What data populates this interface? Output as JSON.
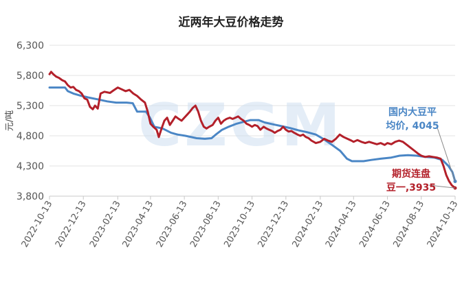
{
  "chart_data": {
    "type": "line",
    "title": "近两年大豆价格走势",
    "ylabel": "元/吨",
    "xlabel": "",
    "ylim": [
      3800,
      6300
    ],
    "yticks": [
      3800,
      4300,
      4800,
      5300,
      5800,
      6300
    ],
    "ytick_labels": [
      "3,800",
      "4,300",
      "4,800",
      "5,300",
      "5,800",
      "6,300"
    ],
    "xticks": [
      "2022-10-13",
      "2022-12-13",
      "2023-02-13",
      "2023-04-13",
      "2023-06-13",
      "2023-08-13",
      "2023-10-13",
      "2023-12-13",
      "2024-02-13",
      "2024-04-13",
      "2024-06-13",
      "2024-08-13",
      "2024-10-13"
    ],
    "xlim": [
      "2022-10-13",
      "2024-10-13"
    ],
    "grid": "horizontal",
    "watermark": "CZGM",
    "series": [
      {
        "name": "国内大豆平均价",
        "color": "#4a86c5",
        "points": [
          [
            "2022-10-13",
            5600
          ],
          [
            "2022-11-10",
            5600
          ],
          [
            "2022-11-15",
            5540
          ],
          [
            "2022-11-25",
            5500
          ],
          [
            "2022-12-10",
            5460
          ],
          [
            "2022-12-25",
            5430
          ],
          [
            "2023-01-10",
            5400
          ],
          [
            "2023-01-25",
            5370
          ],
          [
            "2023-02-10",
            5350
          ],
          [
            "2023-03-01",
            5350
          ],
          [
            "2023-03-12",
            5340
          ],
          [
            "2023-03-20",
            5200
          ],
          [
            "2023-04-05",
            5200
          ],
          [
            "2023-04-12",
            5100
          ],
          [
            "2023-04-20",
            4950
          ],
          [
            "2023-05-05",
            4920
          ],
          [
            "2023-05-20",
            4850
          ],
          [
            "2023-06-01",
            4820
          ],
          [
            "2023-06-15",
            4800
          ],
          [
            "2023-07-05",
            4760
          ],
          [
            "2023-07-20",
            4750
          ],
          [
            "2023-08-01",
            4760
          ],
          [
            "2023-08-10",
            4830
          ],
          [
            "2023-08-20",
            4900
          ],
          [
            "2023-09-01",
            4950
          ],
          [
            "2023-09-15",
            5000
          ],
          [
            "2023-10-01",
            5040
          ],
          [
            "2023-10-10",
            5060
          ],
          [
            "2023-10-25",
            5060
          ],
          [
            "2023-11-05",
            5020
          ],
          [
            "2023-11-20",
            4990
          ],
          [
            "2023-12-05",
            4960
          ],
          [
            "2023-12-20",
            4930
          ],
          [
            "2024-01-05",
            4890
          ],
          [
            "2024-01-20",
            4860
          ],
          [
            "2024-02-05",
            4820
          ],
          [
            "2024-02-20",
            4740
          ],
          [
            "2024-03-05",
            4650
          ],
          [
            "2024-03-20",
            4550
          ],
          [
            "2024-04-01",
            4420
          ],
          [
            "2024-04-10",
            4380
          ],
          [
            "2024-05-01",
            4380
          ],
          [
            "2024-05-15",
            4400
          ],
          [
            "2024-06-01",
            4420
          ],
          [
            "2024-06-20",
            4440
          ],
          [
            "2024-07-05",
            4470
          ],
          [
            "2024-07-20",
            4480
          ],
          [
            "2024-08-05",
            4470
          ],
          [
            "2024-08-20",
            4450
          ],
          [
            "2024-09-05",
            4440
          ],
          [
            "2024-09-20",
            4400
          ],
          [
            "2024-10-01",
            4300
          ],
          [
            "2024-10-08",
            4200
          ],
          [
            "2024-10-13",
            4045
          ]
        ]
      },
      {
        "name": "期货连盘豆一",
        "color": "#b3202a",
        "points": [
          [
            "2022-10-13",
            5820
          ],
          [
            "2022-10-16",
            5860
          ],
          [
            "2022-10-20",
            5820
          ],
          [
            "2022-10-25",
            5780
          ],
          [
            "2022-10-30",
            5760
          ],
          [
            "2022-11-05",
            5720
          ],
          [
            "2022-11-10",
            5700
          ],
          [
            "2022-11-15",
            5640
          ],
          [
            "2022-11-20",
            5600
          ],
          [
            "2022-11-25",
            5610
          ],
          [
            "2022-11-30",
            5560
          ],
          [
            "2022-12-05",
            5540
          ],
          [
            "2022-12-10",
            5500
          ],
          [
            "2022-12-15",
            5420
          ],
          [
            "2022-12-20",
            5400
          ],
          [
            "2022-12-25",
            5280
          ],
          [
            "2022-12-30",
            5240
          ],
          [
            "2023-01-03",
            5300
          ],
          [
            "2023-01-08",
            5250
          ],
          [
            "2023-01-13",
            5500
          ],
          [
            "2023-01-20",
            5530
          ],
          [
            "2023-01-30",
            5510
          ],
          [
            "2023-02-05",
            5550
          ],
          [
            "2023-02-13",
            5600
          ],
          [
            "2023-02-20",
            5570
          ],
          [
            "2023-02-27",
            5540
          ],
          [
            "2023-03-06",
            5560
          ],
          [
            "2023-03-13",
            5500
          ],
          [
            "2023-03-20",
            5460
          ],
          [
            "2023-03-27",
            5400
          ],
          [
            "2023-04-03",
            5350
          ],
          [
            "2023-04-08",
            5200
          ],
          [
            "2023-04-13",
            5000
          ],
          [
            "2023-04-18",
            4950
          ],
          [
            "2023-04-24",
            4900
          ],
          [
            "2023-04-28",
            4780
          ],
          [
            "2023-05-03",
            4920
          ],
          [
            "2023-05-08",
            5050
          ],
          [
            "2023-05-13",
            5100
          ],
          [
            "2023-05-18",
            4980
          ],
          [
            "2023-05-23",
            5050
          ],
          [
            "2023-05-28",
            5120
          ],
          [
            "2023-06-03",
            5080
          ],
          [
            "2023-06-08",
            5050
          ],
          [
            "2023-06-13",
            5100
          ],
          [
            "2023-06-18",
            5150
          ],
          [
            "2023-06-23",
            5200
          ],
          [
            "2023-06-28",
            5260
          ],
          [
            "2023-07-03",
            5300
          ],
          [
            "2023-07-08",
            5200
          ],
          [
            "2023-07-13",
            5050
          ],
          [
            "2023-07-18",
            4950
          ],
          [
            "2023-07-23",
            4920
          ],
          [
            "2023-07-28",
            4950
          ],
          [
            "2023-08-03",
            4980
          ],
          [
            "2023-08-08",
            5050
          ],
          [
            "2023-08-13",
            5100
          ],
          [
            "2023-08-18",
            5000
          ],
          [
            "2023-08-23",
            5050
          ],
          [
            "2023-08-28",
            5080
          ],
          [
            "2023-09-03",
            5100
          ],
          [
            "2023-09-08",
            5080
          ],
          [
            "2023-09-13",
            5100
          ],
          [
            "2023-09-18",
            5120
          ],
          [
            "2023-09-23",
            5080
          ],
          [
            "2023-09-28",
            5050
          ],
          [
            "2023-10-03",
            5000
          ],
          [
            "2023-10-08",
            4980
          ],
          [
            "2023-10-13",
            4950
          ],
          [
            "2023-10-18",
            4980
          ],
          [
            "2023-10-23",
            4960
          ],
          [
            "2023-10-28",
            4900
          ],
          [
            "2023-11-03",
            4950
          ],
          [
            "2023-11-08",
            4920
          ],
          [
            "2023-11-13",
            4900
          ],
          [
            "2023-11-18",
            4880
          ],
          [
            "2023-11-23",
            4850
          ],
          [
            "2023-11-28",
            4880
          ],
          [
            "2023-12-03",
            4900
          ],
          [
            "2023-12-08",
            4950
          ],
          [
            "2023-12-13",
            4900
          ],
          [
            "2023-12-18",
            4870
          ],
          [
            "2023-12-23",
            4880
          ],
          [
            "2023-12-28",
            4850
          ],
          [
            "2024-01-03",
            4820
          ],
          [
            "2024-01-08",
            4800
          ],
          [
            "2024-01-13",
            4820
          ],
          [
            "2024-01-18",
            4780
          ],
          [
            "2024-01-23",
            4760
          ],
          [
            "2024-01-28",
            4720
          ],
          [
            "2024-02-05",
            4680
          ],
          [
            "2024-02-13",
            4700
          ],
          [
            "2024-02-20",
            4750
          ],
          [
            "2024-02-27",
            4720
          ],
          [
            "2024-03-05",
            4700
          ],
          [
            "2024-03-12",
            4750
          ],
          [
            "2024-03-19",
            4820
          ],
          [
            "2024-03-26",
            4780
          ],
          [
            "2024-04-02",
            4750
          ],
          [
            "2024-04-09",
            4720
          ],
          [
            "2024-04-13",
            4700
          ],
          [
            "2024-04-20",
            4730
          ],
          [
            "2024-04-27",
            4700
          ],
          [
            "2024-05-04",
            4680
          ],
          [
            "2024-05-11",
            4700
          ],
          [
            "2024-05-18",
            4680
          ],
          [
            "2024-05-25",
            4660
          ],
          [
            "2024-06-01",
            4680
          ],
          [
            "2024-06-08",
            4650
          ],
          [
            "2024-06-13",
            4680
          ],
          [
            "2024-06-20",
            4660
          ],
          [
            "2024-06-27",
            4700
          ],
          [
            "2024-07-04",
            4720
          ],
          [
            "2024-07-11",
            4700
          ],
          [
            "2024-07-18",
            4650
          ],
          [
            "2024-07-25",
            4600
          ],
          [
            "2024-08-01",
            4550
          ],
          [
            "2024-08-08",
            4500
          ],
          [
            "2024-08-13",
            4470
          ],
          [
            "2024-08-20",
            4450
          ],
          [
            "2024-08-27",
            4460
          ],
          [
            "2024-09-03",
            4450
          ],
          [
            "2024-09-10",
            4440
          ],
          [
            "2024-09-17",
            4420
          ],
          [
            "2024-09-22",
            4300
          ],
          [
            "2024-09-27",
            4150
          ],
          [
            "2024-10-02",
            4050
          ],
          [
            "2024-10-07",
            3980
          ],
          [
            "2024-10-13",
            3935
          ]
        ]
      }
    ],
    "annotations": [
      {
        "series": 0,
        "lines": [
          "国内大豆平",
          "均价, 4045"
        ]
      },
      {
        "series": 1,
        "lines": [
          "期货连盘",
          "豆一,3935"
        ]
      }
    ]
  }
}
